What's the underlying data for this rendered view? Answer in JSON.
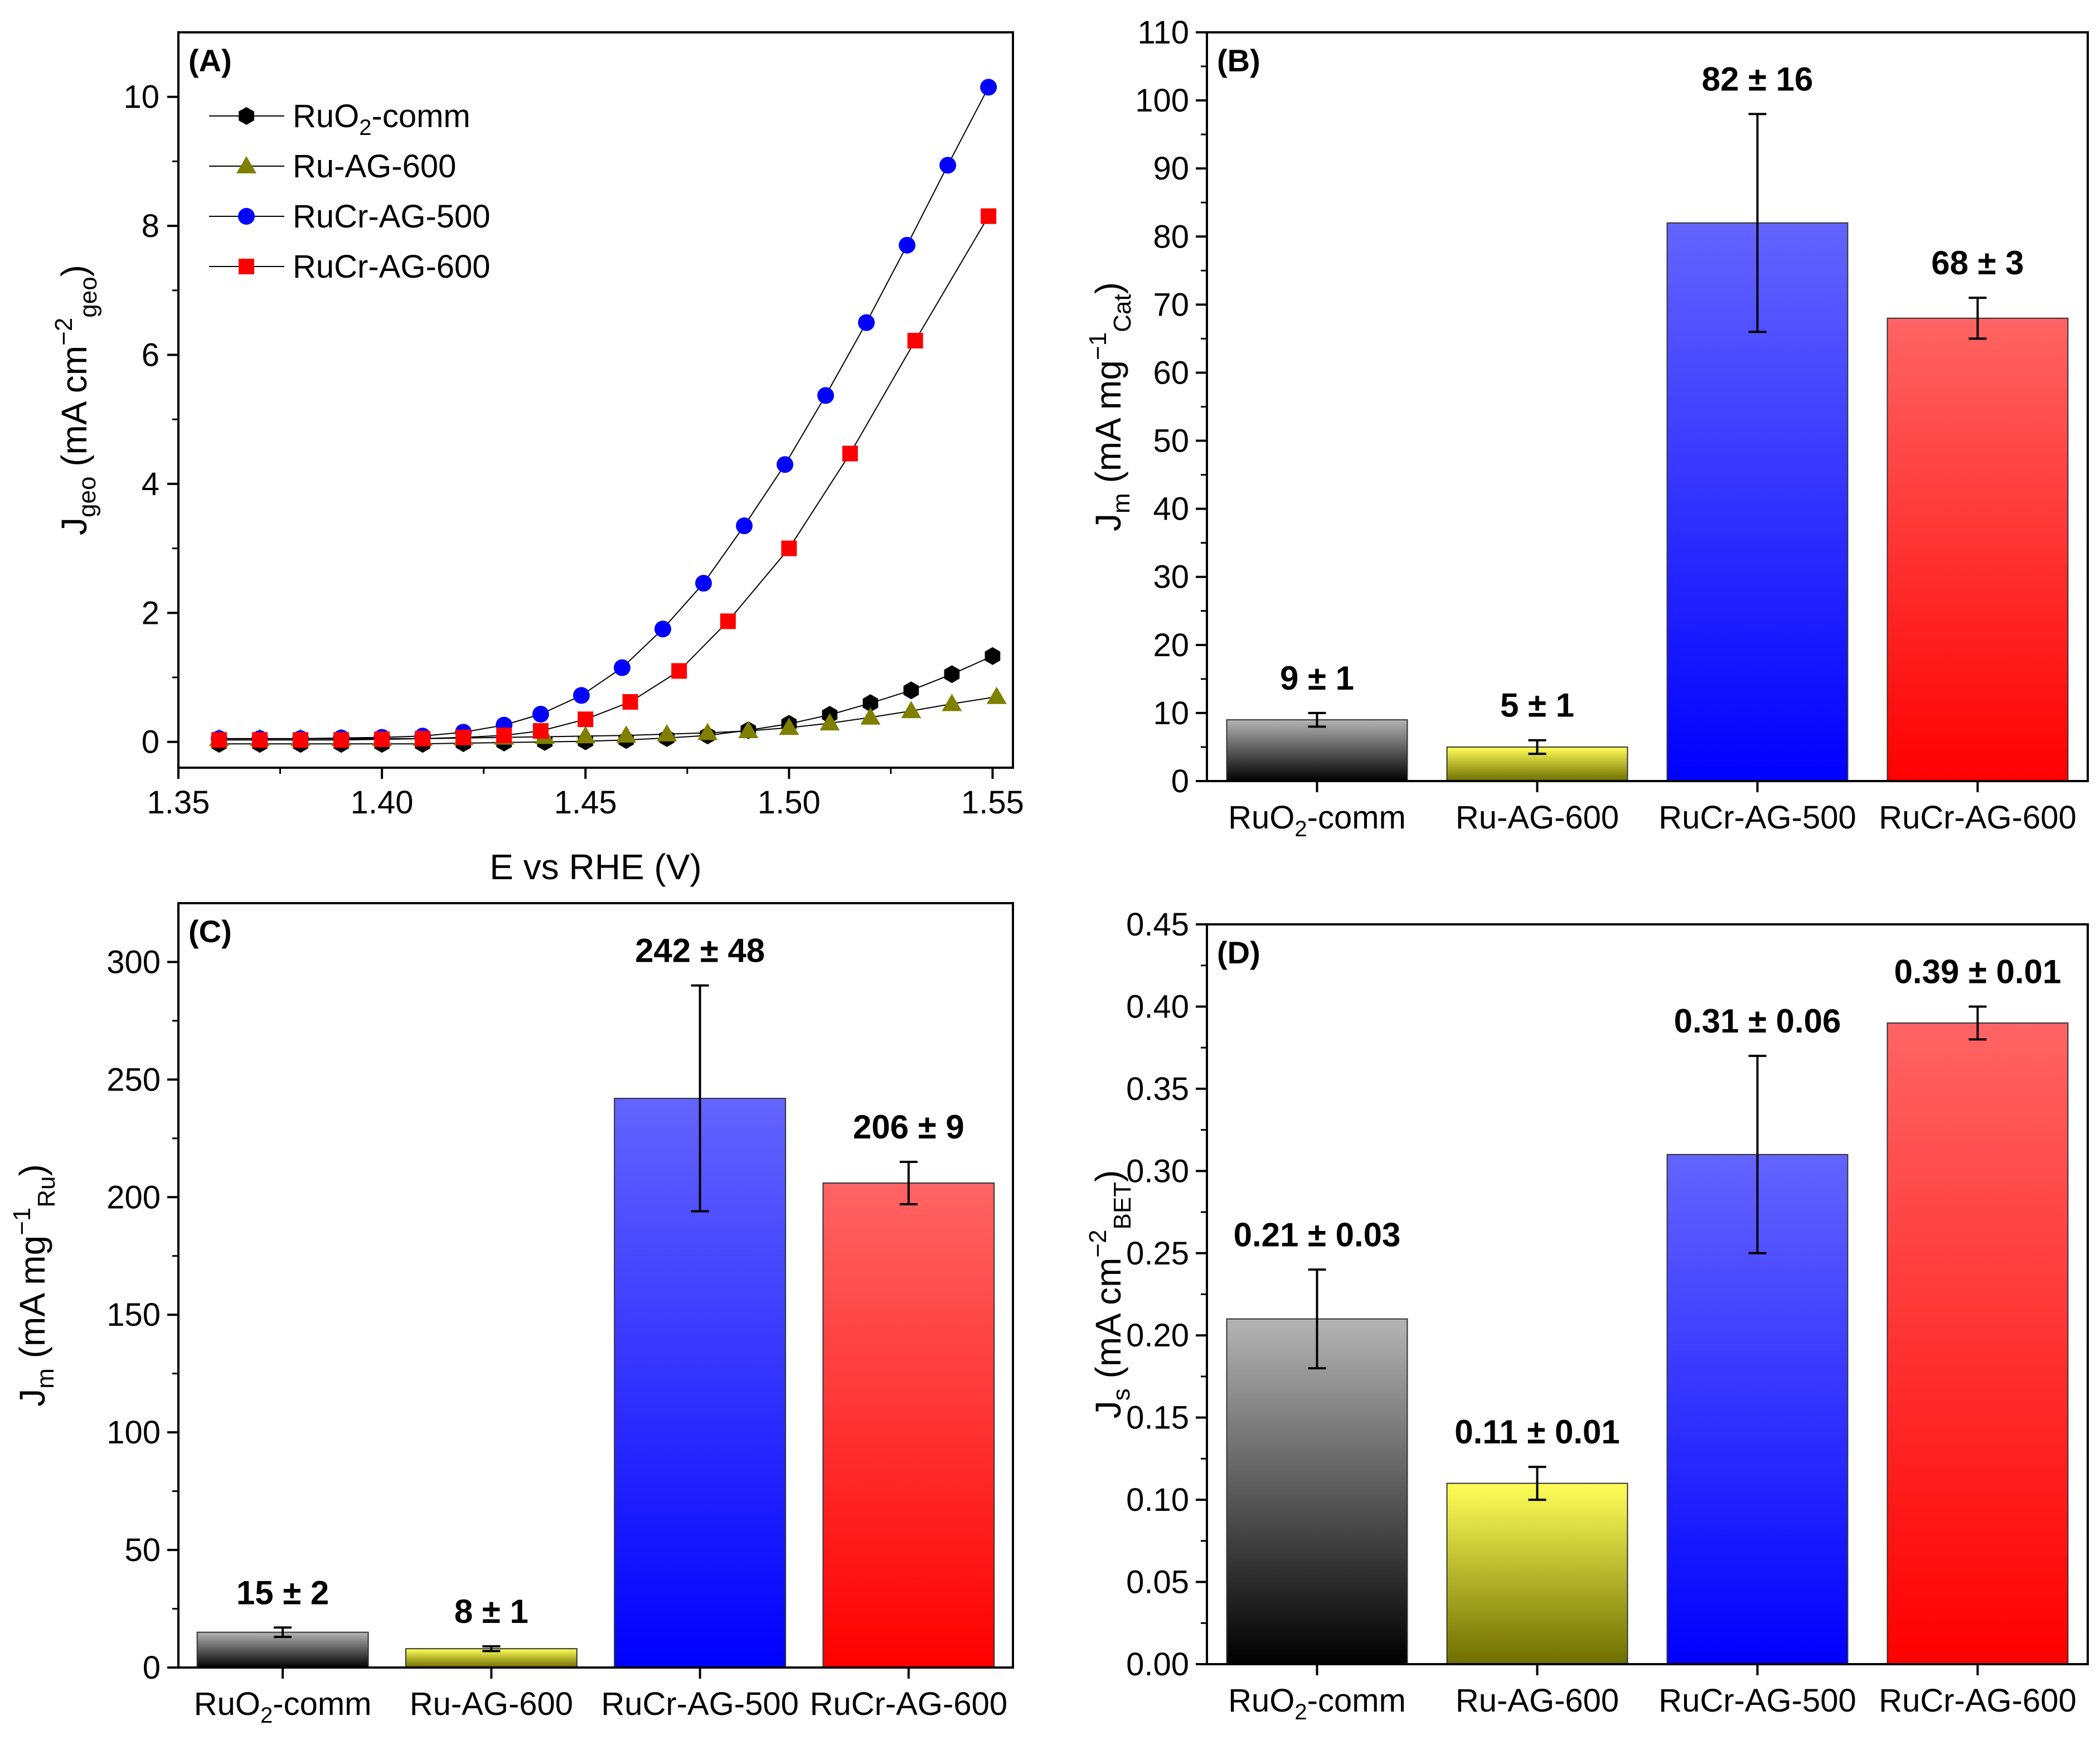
{
  "chart_data": [
    {
      "type": "line",
      "panel": "(A)",
      "xlabel": "E vs RHE (V)",
      "ylabel": {
        "main": "J",
        "sub": "geo",
        "unit": " (mA cm",
        "sup": "−2",
        "unit_sub": "geo"
      },
      "xlim": [
        1.35,
        1.555
      ],
      "ylim": [
        -0.4,
        11.0
      ],
      "xticks": [
        "1.35",
        "1.40",
        "1.45",
        "1.50",
        "1.55"
      ],
      "xtick_values": [
        1.35,
        1.4,
        1.45,
        1.5,
        1.55
      ],
      "yticks": [
        "0",
        "2",
        "4",
        "6",
        "8",
        "10"
      ],
      "ytick_values": [
        0,
        2,
        4,
        6,
        8,
        10
      ],
      "series": [
        {
          "name": "RuO2-comm",
          "label_main": "RuO",
          "label_sub": "2",
          "label_rest": "-comm",
          "color": "#000000",
          "marker": "hexagon",
          "x": [
            1.36,
            1.37,
            1.38,
            1.39,
            1.4,
            1.41,
            1.42,
            1.43,
            1.44,
            1.45,
            1.46,
            1.47,
            1.48,
            1.49,
            1.5,
            1.51,
            1.52,
            1.53,
            1.54,
            1.55
          ],
          "y": [
            -0.03,
            -0.03,
            -0.03,
            -0.03,
            -0.03,
            -0.03,
            -0.02,
            -0.01,
            0.0,
            0.01,
            0.03,
            0.06,
            0.1,
            0.18,
            0.28,
            0.42,
            0.6,
            0.8,
            1.05,
            1.33
          ]
        },
        {
          "name": "Ru-AG-600",
          "label_main": "Ru-AG-600",
          "label_sub": "",
          "label_rest": "",
          "color": "#7f7f00",
          "marker": "triangle",
          "x": [
            1.36,
            1.37,
            1.38,
            1.39,
            1.4,
            1.41,
            1.42,
            1.43,
            1.44,
            1.45,
            1.46,
            1.47,
            1.48,
            1.49,
            1.5,
            1.51,
            1.52,
            1.53,
            1.54,
            1.551
          ],
          "y": [
            0.05,
            0.05,
            0.05,
            0.05,
            0.05,
            0.05,
            0.06,
            0.07,
            0.08,
            0.09,
            0.1,
            0.12,
            0.14,
            0.17,
            0.22,
            0.29,
            0.38,
            0.48,
            0.59,
            0.7
          ]
        },
        {
          "name": "RuCr-AG-500",
          "label_main": "RuCr-AG-500",
          "label_sub": "",
          "label_rest": "",
          "color": "#0000ff",
          "marker": "circle",
          "x": [
            1.36,
            1.37,
            1.38,
            1.39,
            1.4,
            1.41,
            1.42,
            1.43,
            1.439,
            1.449,
            1.459,
            1.469,
            1.479,
            1.489,
            1.499,
            1.509,
            1.519,
            1.529,
            1.539,
            1.549
          ],
          "y": [
            0.05,
            0.05,
            0.05,
            0.06,
            0.07,
            0.09,
            0.15,
            0.26,
            0.43,
            0.72,
            1.15,
            1.75,
            2.46,
            3.35,
            4.3,
            5.37,
            6.5,
            7.7,
            8.94,
            10.15
          ]
        },
        {
          "name": "RuCr-AG-600",
          "label_main": "RuCr-AG-600",
          "label_sub": "",
          "label_rest": "",
          "color": "#ff0000",
          "marker": "square",
          "x": [
            1.36,
            1.37,
            1.38,
            1.39,
            1.4,
            1.41,
            1.42,
            1.43,
            1.439,
            1.45,
            1.461,
            1.473,
            1.485,
            1.5,
            1.515,
            1.531,
            1.549
          ],
          "y": [
            0.03,
            0.03,
            0.03,
            0.03,
            0.04,
            0.05,
            0.07,
            0.1,
            0.17,
            0.35,
            0.62,
            1.1,
            1.87,
            3.0,
            4.47,
            6.22,
            8.15
          ]
        }
      ]
    },
    {
      "type": "bar",
      "panel": "(B)",
      "categories": [
        "RuO2-comm",
        "Ru-AG-600",
        "RuCr-AG-500",
        "RuCr-AG-600"
      ],
      "category_labels": [
        {
          "main": "RuO",
          "sub": "2",
          "rest": "-comm"
        },
        {
          "main": "Ru-AG-600",
          "sub": "",
          "rest": ""
        },
        {
          "main": "RuCr-AG-500",
          "sub": "",
          "rest": ""
        },
        {
          "main": "RuCr-AG-600",
          "sub": "",
          "rest": ""
        }
      ],
      "values": [
        9,
        5,
        82,
        68
      ],
      "errors": [
        1,
        1,
        16,
        3
      ],
      "value_labels": [
        "9 ± 1",
        "5 ± 1",
        "82 ± 16",
        "68 ± 3"
      ],
      "ylabel": {
        "main": "J",
        "sub": "m",
        "unit": " (mA mg",
        "sup": "−1",
        "unit_sub": "Cat"
      },
      "ylim": [
        0,
        110
      ],
      "yticks": [
        "0",
        "10",
        "20",
        "30",
        "40",
        "50",
        "60",
        "70",
        "80",
        "90",
        "100",
        "110"
      ],
      "ytick_values": [
        0,
        10,
        20,
        30,
        40,
        50,
        60,
        70,
        80,
        90,
        100,
        110
      ]
    },
    {
      "type": "bar",
      "panel": "(C)",
      "categories": [
        "RuO2-comm",
        "Ru-AG-600",
        "RuCr-AG-500",
        "RuCr-AG-600"
      ],
      "category_labels": [
        {
          "main": "RuO",
          "sub": "2",
          "rest": "-comm"
        },
        {
          "main": "Ru-AG-600",
          "sub": "",
          "rest": ""
        },
        {
          "main": "RuCr-AG-500",
          "sub": "",
          "rest": ""
        },
        {
          "main": "RuCr-AG-600",
          "sub": "",
          "rest": ""
        }
      ],
      "values": [
        15,
        8,
        242,
        206
      ],
      "errors": [
        2,
        1,
        48,
        9
      ],
      "value_labels": [
        "15 ± 2",
        "8 ± 1",
        "242 ± 48",
        "206 ± 9"
      ],
      "ylabel": {
        "main": "J",
        "sub": "m",
        "unit": " (mA mg",
        "sup": "−1",
        "unit_sub": "Ru"
      },
      "ylim": [
        0,
        325
      ],
      "yticks": [
        "0",
        "50",
        "100",
        "150",
        "200",
        "250",
        "300"
      ],
      "ytick_values": [
        0,
        50,
        100,
        150,
        200,
        250,
        300
      ]
    },
    {
      "type": "bar",
      "panel": "(D)",
      "categories": [
        "RuO2-comm",
        "Ru-AG-600",
        "RuCr-AG-500",
        "RuCr-AG-600"
      ],
      "category_labels": [
        {
          "main": "RuO",
          "sub": "2",
          "rest": "-comm"
        },
        {
          "main": "Ru-AG-600",
          "sub": "",
          "rest": ""
        },
        {
          "main": "RuCr-AG-500",
          "sub": "",
          "rest": ""
        },
        {
          "main": "RuCr-AG-600",
          "sub": "",
          "rest": ""
        }
      ],
      "values": [
        0.21,
        0.11,
        0.31,
        0.39
      ],
      "errors": [
        0.03,
        0.01,
        0.06,
        0.01
      ],
      "value_labels": [
        "0.21 ± 0.03",
        "0.11 ± 0.01",
        "0.31 ± 0.06",
        "0.39 ± 0.01"
      ],
      "ylabel": {
        "main": "J",
        "sub": "s",
        "unit": " (mA cm",
        "sup": "−2",
        "unit_sub": "BET"
      },
      "ylim": [
        0,
        0.45
      ],
      "yticks": [
        "0.00",
        "0.05",
        "0.10",
        "0.15",
        "0.20",
        "0.25",
        "0.30",
        "0.35",
        "0.40",
        "0.45"
      ],
      "ytick_values": [
        0,
        0.05,
        0.1,
        0.15,
        0.2,
        0.25,
        0.3,
        0.35,
        0.4,
        0.45
      ]
    }
  ],
  "bar_colors": {
    "RuO2-comm": {
      "top": "#b4b4b4",
      "bottom": "#000000"
    },
    "Ru-AG-600": {
      "top": "#ffff5a",
      "bottom": "#6e6e00"
    },
    "RuCr-AG-500": {
      "top": "#6464ff",
      "bottom": "#0000ff"
    },
    "RuCr-AG-600": {
      "top": "#ff6464",
      "bottom": "#ff0000"
    }
  }
}
